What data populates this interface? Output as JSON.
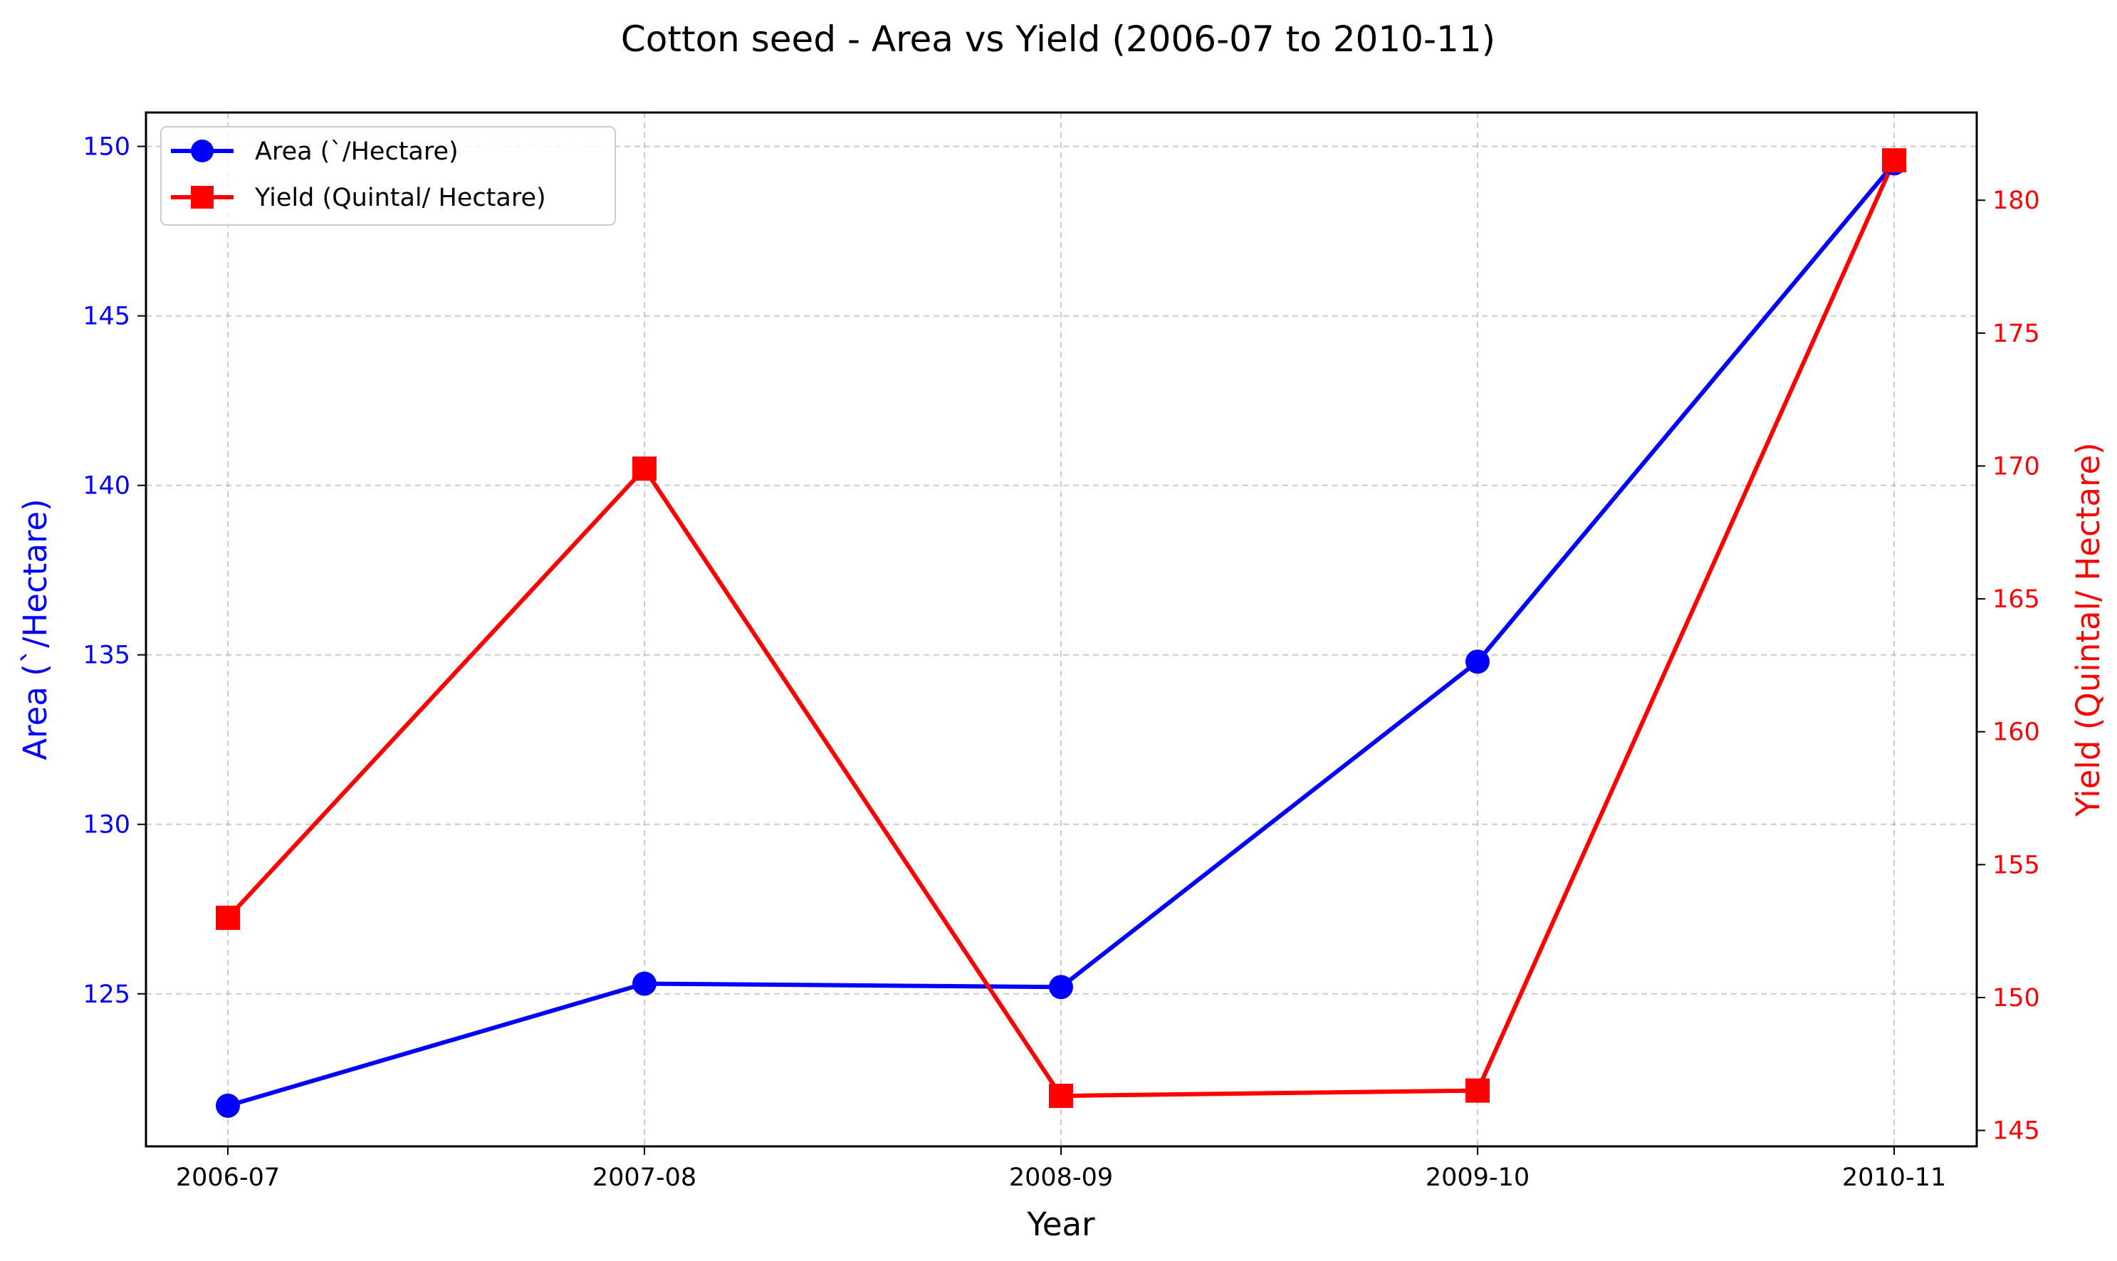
{
  "chart_data": {
    "type": "line",
    "title": "Cotton seed - Area vs Yield (2006-07 to 2010-11)",
    "xlabel": "Year",
    "categories": [
      "2006-07",
      "2007-08",
      "2008-09",
      "2009-10",
      "2010-11"
    ],
    "grid": true,
    "legend_position": "upper-left",
    "left_axis": {
      "label": "Area (`/Hectare)",
      "ylim": [
        120.5,
        151.0
      ],
      "ticks": [
        125,
        130,
        135,
        140,
        145,
        150
      ],
      "color": "#0000ff"
    },
    "right_axis": {
      "label": "Yield (Quintal/ Hectare)",
      "ylim": [
        144.4,
        183.3
      ],
      "ticks": [
        145,
        150,
        155,
        160,
        165,
        170,
        175,
        180
      ],
      "color": "#ff0000"
    },
    "series": [
      {
        "name": "Area (`/Hectare)",
        "axis": "left",
        "color": "#0000ff",
        "marker": "circle",
        "values": [
          121.7,
          125.3,
          125.2,
          134.8,
          149.5
        ]
      },
      {
        "name": "Yield (Quintal/ Hectare)",
        "axis": "right",
        "color": "#ff0000",
        "marker": "square",
        "values": [
          153.0,
          169.9,
          146.3,
          146.5,
          181.5
        ]
      }
    ]
  }
}
